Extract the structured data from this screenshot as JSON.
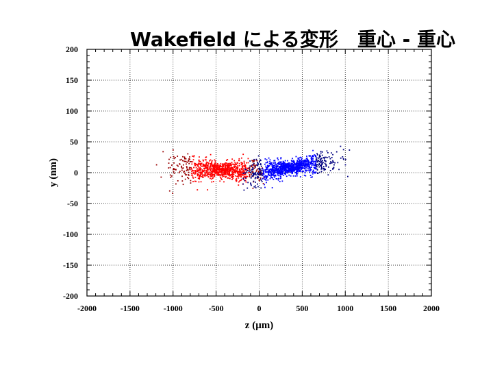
{
  "chart_data": {
    "type": "scatter",
    "title": "Wakefield による変形　重心 - 重心",
    "xlabel": "z (μm)",
    "ylabel": "y (nm)",
    "xlim": [
      -2000,
      2000
    ],
    "ylim": [
      -200,
      200
    ],
    "x_ticks": [
      -2000,
      -1500,
      -1000,
      -500,
      0,
      500,
      1000,
      1500,
      2000
    ],
    "y_ticks": [
      -200,
      -150,
      -100,
      -50,
      0,
      50,
      100,
      150,
      200
    ],
    "grid": true,
    "legend": "none",
    "series": [
      {
        "name": "red",
        "color": "#ff0000",
        "dark_color": "#990000",
        "count": 900,
        "x_range": [
          -1250,
          50
        ],
        "x_center": -450,
        "x_sigma": 260,
        "y_mean_at_x_center": 4,
        "y_slope_per_um": -0.004,
        "y_sigma": 6
      },
      {
        "name": "blue",
        "color": "#0000ff",
        "dark_color": "#000080",
        "count": 1100,
        "x_range": [
          -200,
          1200
        ],
        "x_center": 350,
        "x_sigma": 240,
        "y_mean_at_x_center": 8,
        "y_slope_per_um": 0.022,
        "y_sigma": 5
      }
    ]
  }
}
